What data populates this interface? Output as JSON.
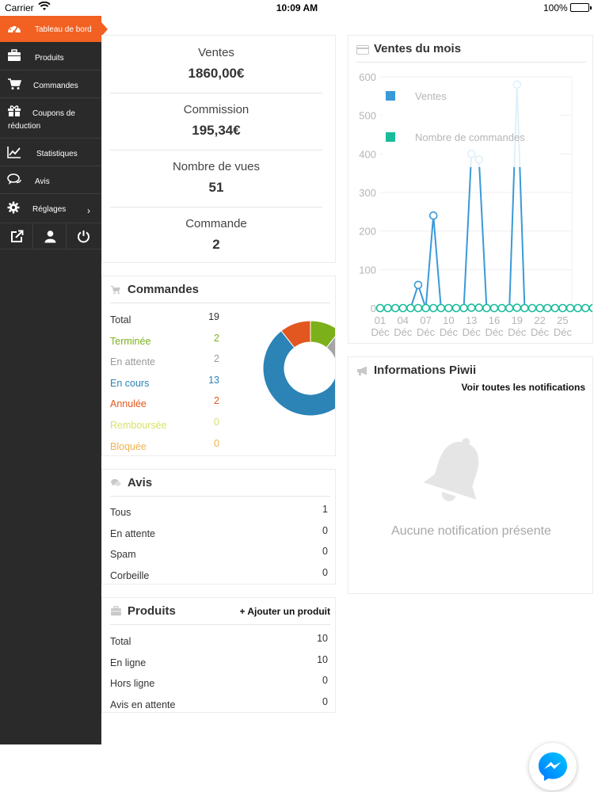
{
  "status_bar": {
    "carrier": "Carrier",
    "time": "10:09 AM",
    "battery": "100%"
  },
  "sidebar": {
    "items": [
      {
        "label": "Tableau de bord",
        "icon": "dashboard-gauge-icon",
        "active": true
      },
      {
        "label": "Produits",
        "icon": "briefcase-icon"
      },
      {
        "label": "Commandes",
        "icon": "shopping-cart-icon"
      },
      {
        "label_line1": "Coupons de",
        "label_line2": "réduction",
        "icon": "gift-icon"
      },
      {
        "label": "Statistiques",
        "icon": "line-chart-icon"
      },
      {
        "label": "Avis",
        "icon": "comments-icon"
      },
      {
        "label": "Réglages",
        "icon": "gear-icon",
        "chevron": "›"
      }
    ],
    "tools": [
      "external-link-icon",
      "user-icon",
      "power-icon"
    ]
  },
  "stats": [
    {
      "label": "Ventes",
      "value": "1860,00€"
    },
    {
      "label": "Commission",
      "value": "195,34€"
    },
    {
      "label": "Nombre de vues",
      "value": "51"
    },
    {
      "label": "Commande",
      "value": "2"
    }
  ],
  "commandes": {
    "title": "Commandes",
    "rows": [
      {
        "label": "Total",
        "value": "19",
        "color": "#333333"
      },
      {
        "label": "Terminée",
        "value": "2",
        "color": "#7cb01b"
      },
      {
        "label": "En attente",
        "value": "2",
        "color": "#9a9a9a"
      },
      {
        "label": "En cours",
        "value": "13",
        "color": "#2c83b6"
      },
      {
        "label": "Annulée",
        "value": "2",
        "color": "#e2571f"
      },
      {
        "label": "Remboursée",
        "value": "0",
        "color": "#d8e26a"
      },
      {
        "label": "Bloquée",
        "value": "0",
        "color": "#f1b24a"
      }
    ],
    "donut": [
      {
        "value": 2,
        "color": "#7cb01b"
      },
      {
        "value": 2,
        "color": "#a5a5a5"
      },
      {
        "value": 13,
        "color": "#2c83b6"
      },
      {
        "value": 2,
        "color": "#e2571f"
      }
    ]
  },
  "avis": {
    "title": "Avis",
    "rows": [
      {
        "label": "Tous",
        "value": "1"
      },
      {
        "label": "En attente",
        "value": "0"
      },
      {
        "label": "Spam",
        "value": "0"
      },
      {
        "label": "Corbeille",
        "value": "0"
      }
    ]
  },
  "produits": {
    "title": "Produits",
    "action": "+ Ajouter un produit",
    "rows": [
      {
        "label": "Total",
        "value": "10"
      },
      {
        "label": "En ligne",
        "value": "10"
      },
      {
        "label": "Hors ligne",
        "value": "0"
      },
      {
        "label": "Avis en attente",
        "value": "0"
      }
    ]
  },
  "ventes_mois": {
    "title": "Ventes du mois"
  },
  "chart_data": {
    "type": "line",
    "x": [
      "01",
      "02",
      "03",
      "04",
      "05",
      "06",
      "07",
      "08",
      "09",
      "10",
      "11",
      "12",
      "13",
      "14",
      "15",
      "16",
      "17",
      "18",
      "19",
      "20",
      "21",
      "22",
      "23",
      "24",
      "25",
      "26",
      "27",
      "28",
      "29",
      "30",
      "31"
    ],
    "tick_labels": [
      {
        "day": "01",
        "month": "Déc"
      },
      {
        "day": "04",
        "month": "Déc"
      },
      {
        "day": "07",
        "month": "Déc"
      },
      {
        "day": "10",
        "month": "Déc"
      },
      {
        "day": "13",
        "month": "Déc"
      },
      {
        "day": "16",
        "month": "Déc"
      },
      {
        "day": "19",
        "month": "Déc"
      },
      {
        "day": "22",
        "month": "Déc"
      },
      {
        "day": "25",
        "month": "Déc"
      }
    ],
    "series": [
      {
        "name": "Ventes",
        "color": "#3a99d8",
        "values": [
          0,
          0,
          0,
          0,
          0,
          60,
          0,
          240,
          0,
          0,
          0,
          0,
          400,
          385,
          0,
          0,
          0,
          0,
          580,
          0,
          0,
          0,
          0,
          0,
          0,
          0,
          0,
          0,
          0,
          0,
          0
        ]
      },
      {
        "name": "Nombre de commandes",
        "color": "#1abc9c",
        "values": [
          0,
          0,
          0,
          0,
          0,
          0,
          0,
          0,
          0,
          0,
          0,
          0,
          1,
          1,
          0,
          0,
          0,
          0,
          1,
          0,
          0,
          0,
          0,
          0,
          0,
          0,
          0,
          0,
          0,
          0,
          0
        ]
      }
    ],
    "ylim": [
      0,
      600
    ],
    "yticks": [
      0,
      100,
      200,
      300,
      400,
      500,
      600
    ],
    "grid": true,
    "legend": "top-left"
  },
  "informations": {
    "title": "Informations Piwii",
    "action": "Voir toutes les notifications",
    "empty": "Aucune notification présente"
  }
}
